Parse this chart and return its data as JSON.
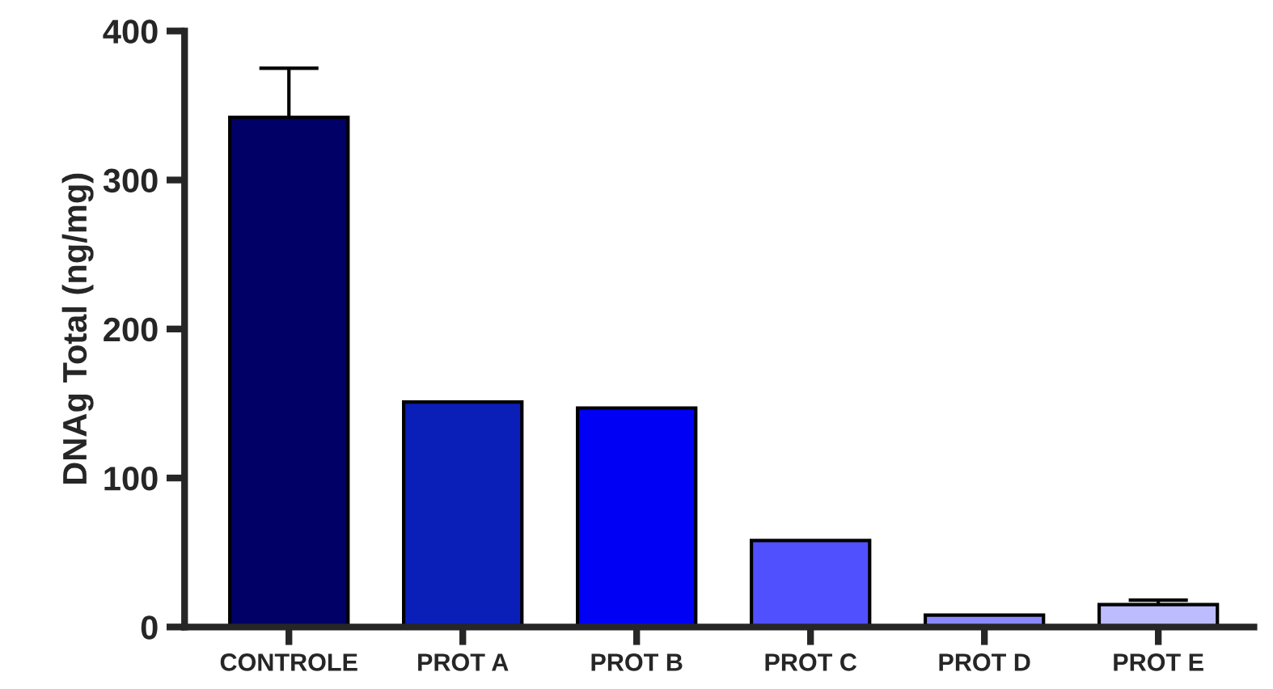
{
  "chart_data": {
    "type": "bar",
    "ylabel": "DNAg Total (ng/mg)",
    "categories": [
      "CONTROLE",
      "PROT A",
      "PROT B",
      "PROT C",
      "PROT D",
      "PROT E"
    ],
    "values": [
      342,
      151,
      147,
      58,
      8,
      15
    ],
    "colors": [
      "#000066",
      "#0a1fb8",
      "#0000f5",
      "#5050ff",
      "#8a8aff",
      "#bcbcff"
    ],
    "errors": [
      [
        342,
        375
      ],
      null,
      null,
      null,
      null,
      [
        15,
        18
      ]
    ],
    "ylim": [
      0,
      400
    ],
    "yticks": [
      0,
      100,
      200,
      300,
      400
    ],
    "grid": false
  }
}
